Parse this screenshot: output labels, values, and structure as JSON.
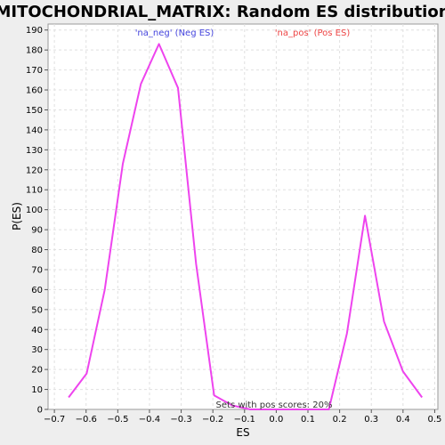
{
  "chart_data": {
    "type": "line",
    "title": "MITOCHONDRIAL_MATRIX: Random ES distribution",
    "xlabel": "ES",
    "ylabel": "P(ES)",
    "xlim": [
      -0.72,
      0.51
    ],
    "ylim": [
      0,
      193
    ],
    "xticks": [
      -0.7,
      -0.6,
      -0.5,
      -0.4,
      -0.3,
      -0.2,
      -0.1,
      0.0,
      0.1,
      0.2,
      0.3,
      0.4,
      0.5
    ],
    "xtick_labels": [
      "−0.7",
      "−0.6",
      "−0.5",
      "−0.4",
      "−0.3",
      "−0.2",
      "−0.1",
      "0.0",
      "0.1",
      "0.2",
      "0.3",
      "0.4",
      "0.5"
    ],
    "yticks": [
      0,
      10,
      20,
      30,
      40,
      50,
      60,
      70,
      80,
      90,
      100,
      110,
      120,
      130,
      140,
      150,
      160,
      170,
      180,
      190
    ],
    "grid": true,
    "series": [
      {
        "color": "#ee44ee",
        "x": [
          -0.655,
          -0.598,
          -0.541,
          -0.484,
          -0.427,
          -0.37,
          -0.31,
          -0.253,
          -0.196,
          -0.139,
          -0.082,
          -0.025,
          0.032,
          0.089,
          0.146,
          0.166,
          0.223,
          0.28,
          0.34,
          0.4,
          0.46
        ],
        "y": [
          6,
          18,
          60,
          123,
          163,
          183,
          161,
          73,
          7,
          2,
          0,
          0,
          0,
          0,
          0,
          0,
          38,
          97,
          44,
          19,
          6
        ]
      }
    ],
    "annotations": {
      "neg_label": "'na_neg' (Neg ES)",
      "neg_color": "#4444dd",
      "pos_label": "'na_pos' (Pos ES)",
      "pos_color": "#ee4444",
      "sets_text": "Sets with pos scores: 20%"
    }
  }
}
